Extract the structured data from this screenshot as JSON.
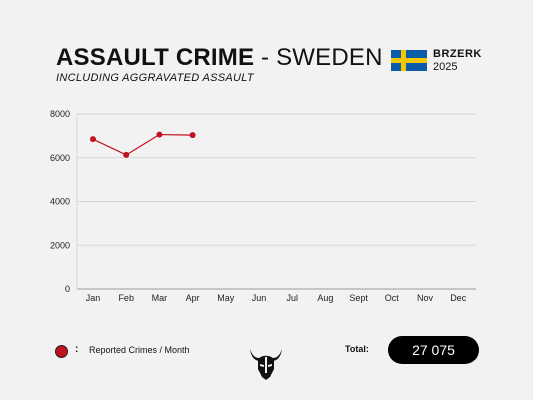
{
  "header": {
    "title_bold": "ASSAULT CRIME",
    "title_light": "- SWEDEN",
    "subtitle": "INCLUDING AGGRAVATED ASSAULT",
    "brand": "BRZERK",
    "year": "2025",
    "flag": {
      "name": "sweden-flag",
      "blue": "#0a5ca8",
      "yellow": "#f6c700"
    }
  },
  "chart_data": {
    "type": "line",
    "categories": [
      "Jan",
      "Feb",
      "Mar",
      "Apr",
      "May",
      "Jun",
      "Jul",
      "Aug",
      "Sept",
      "Oct",
      "Nov",
      "Dec"
    ],
    "series": [
      {
        "name": "Reported Crimes / Month",
        "color": "#c1121f",
        "values": [
          6850,
          6130,
          7060,
          7035,
          null,
          null,
          null,
          null,
          null,
          null,
          null,
          null
        ]
      }
    ],
    "yticks": [
      0,
      2000,
      4000,
      6000,
      8000
    ],
    "ylim": [
      0,
      8000
    ],
    "grid": true,
    "legend_position": "bottom-left"
  },
  "legend": {
    "colon": ":",
    "label": "Reported Crimes / Month"
  },
  "footer": {
    "total_label": "Total:",
    "total_value": "27 075",
    "logo": "viking-helmet-logo"
  }
}
